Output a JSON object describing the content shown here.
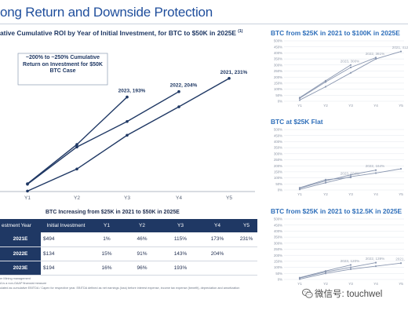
{
  "page": {
    "title": "ong Return and Downside Protection"
  },
  "main_chart": {
    "title": "ative Cumulative ROI by Year of Initial Investment, for BTC to $50K in 2025E",
    "title_note": "(1)",
    "callout": "~200% to ~250% Cumulative Return on Investment for $50K BTC Case"
  },
  "side_charts": {
    "top_title": "BTC from $25K in 2021 to $100K in 2025E",
    "mid_title": "BTC at $25K Flat",
    "bot_title": "BTC from $25K in 2021 to $12.5K in 2025E"
  },
  "table": {
    "caption": "BTC Increasing from $25K in 2021 to $50K in 2025E",
    "headers": [
      "estment Year",
      "Initial Investment",
      "Y1",
      "Y2",
      "Y3",
      "Y4",
      "Y5"
    ],
    "rows": [
      [
        "2021E",
        "$494",
        "1%",
        "46%",
        "115%",
        "173%",
        "231%"
      ],
      [
        "2022E",
        "$134",
        "15%",
        "91%",
        "143%",
        "204%",
        ""
      ],
      [
        "2023E",
        "$194",
        "16%",
        "96%",
        "193%",
        "",
        ""
      ]
    ]
  },
  "footnotes": [
    "er Mining management",
    "A is a non-GAAP financial measure",
    "ulated as cumulative EBITDA / Capex for respective year. EBITDA defined as net earnings (loss) before interest expense, income tax expense (benefit), depreciation and amortization"
  ],
  "watermark": {
    "text": "微信号: touchwel"
  },
  "chart_data": [
    {
      "type": "line",
      "x": [
        "Y1",
        "Y2",
        "Y3",
        "Y4",
        "Y5"
      ],
      "series": [
        {
          "values": [
            1,
            46,
            115,
            173,
            231
          ],
          "end_label": "2021, 231%"
        },
        {
          "values": [
            15,
            91,
            143,
            204,
            null
          ],
          "end_label": "2022, 204%"
        },
        {
          "values": [
            16,
            96,
            193,
            null,
            null
          ],
          "end_label": "2023, 193%"
        }
      ],
      "ylim": [
        0,
        250
      ],
      "color": "#1f3864"
    },
    {
      "type": "line",
      "title": "BTC from $25K in 2021 to $100K in 2025E",
      "x": [
        "Y1",
        "Y2",
        "Y3",
        "Y4",
        "Y5"
      ],
      "yticks": [
        "0%",
        "50%",
        "100%",
        "150%",
        "200%",
        "250%",
        "300%",
        "350%",
        "400%",
        "450%",
        "500%"
      ],
      "ylim": [
        0,
        500
      ],
      "series": [
        {
          "values": [
            10,
            120,
            235,
            350,
            412
          ],
          "end_label": "2021, 412"
        },
        {
          "values": [
            25,
            160,
            280,
            361,
            null
          ],
          "end_label": "2022, 361%"
        },
        {
          "values": [
            30,
            170,
            300,
            null,
            null
          ],
          "end_label": "2023, 300%"
        }
      ],
      "color": "#8a97b0"
    },
    {
      "type": "line",
      "title": "BTC at $25K Flat",
      "x": [
        "Y1",
        "Y2",
        "Y3",
        "Y4",
        "Y5"
      ],
      "yticks": [
        "0%",
        "50%",
        "100%",
        "150%",
        "200%",
        "250%",
        "300%",
        "350%",
        "400%",
        "450%",
        "500%"
      ],
      "ylim": [
        0,
        500
      ],
      "series": [
        {
          "values": [
            5,
            60,
            110,
            140,
            175
          ],
          "end_label": ""
        },
        {
          "values": [
            15,
            75,
            125,
            164,
            null
          ],
          "end_label": "2022, 164%"
        },
        {
          "values": [
            18,
            85,
            104,
            null,
            null
          ],
          "end_label": "2023, 104%"
        }
      ],
      "color": "#8a97b0"
    },
    {
      "type": "line",
      "title": "BTC from $25K in 2021 to $12.5K in 2025E",
      "x": [
        "Y1",
        "Y2",
        "Y3",
        "Y4",
        "Y5"
      ],
      "yticks": [
        "0%",
        "50%",
        "100%",
        "150%",
        "200%",
        "250%",
        "300%",
        "350%",
        "400%",
        "450%",
        "500%"
      ],
      "ylim": [
        0,
        500
      ],
      "series": [
        {
          "values": [
            3,
            50,
            85,
            110,
            135
          ],
          "end_label": "2021,"
        },
        {
          "values": [
            12,
            62,
            100,
            139,
            null
          ],
          "end_label": "2022, 139%"
        },
        {
          "values": [
            15,
            70,
            120,
            null,
            null
          ],
          "end_label": "2023, 120%"
        }
      ],
      "color": "#8a97b0"
    }
  ]
}
